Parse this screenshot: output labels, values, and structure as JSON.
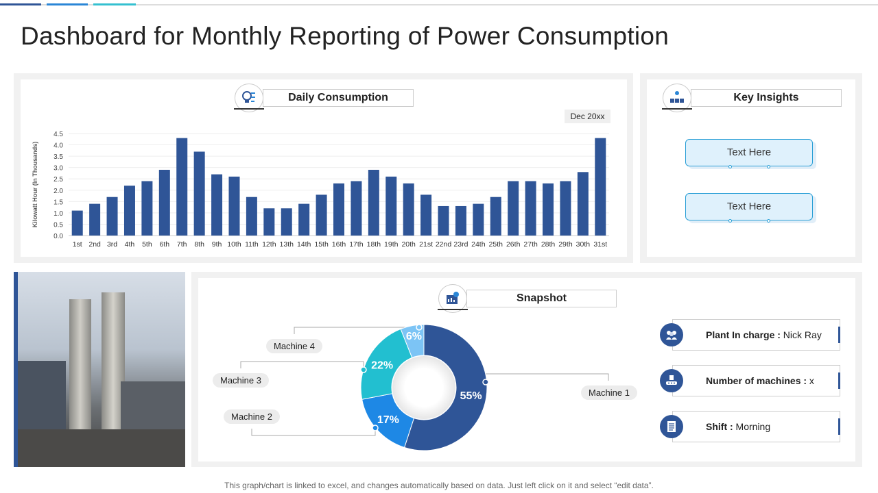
{
  "title": "Dashboard for Monthly Reporting of Power Consumption",
  "daily": {
    "header": "Daily Consumption",
    "period": "Dec 20xx"
  },
  "chart_data": {
    "type": "bar",
    "title": "Daily Consumption",
    "ylabel": "Kilowatt Hour (In Thousands)",
    "xlabel": "",
    "ylim": [
      0,
      4.5
    ],
    "yticks": [
      "0.0",
      "0.5",
      "1.0",
      "1.5",
      "2.0",
      "2.5",
      "3.0",
      "3.5",
      "4.0",
      "4.5"
    ],
    "grid": true,
    "color": "#2f5597",
    "categories": [
      "1st",
      "2nd",
      "3rd",
      "4th",
      "5th",
      "6th",
      "7th",
      "8th",
      "9th",
      "10th",
      "11th",
      "12th",
      "13th",
      "14th",
      "15th",
      "16th",
      "17th",
      "18th",
      "19th",
      "20th",
      "21st",
      "22nd",
      "23rd",
      "24th",
      "25th",
      "26th",
      "27th",
      "28th",
      "29th",
      "30th",
      "31st"
    ],
    "values": [
      1.1,
      1.4,
      1.7,
      2.2,
      2.4,
      2.9,
      4.3,
      3.7,
      2.7,
      2.6,
      1.7,
      1.2,
      1.2,
      1.4,
      1.8,
      2.3,
      2.4,
      2.9,
      2.6,
      2.3,
      1.8,
      1.3,
      1.3,
      1.4,
      1.7,
      2.4,
      2.4,
      2.3,
      2.4,
      2.8,
      4.3
    ]
  },
  "insights": {
    "header": "Key Insights",
    "items": [
      "Text Here",
      "Text Here"
    ]
  },
  "snapshot": {
    "header": "Snapshot",
    "donut": {
      "type": "pie",
      "slices": [
        {
          "name": "Machine 1",
          "value": 55,
          "label": "55%",
          "color": "#2f5597"
        },
        {
          "name": "Machine 2",
          "value": 17,
          "label": "17%",
          "color": "#1e88e5"
        },
        {
          "name": "Machine 3",
          "value": 22,
          "label": "22%",
          "color": "#22bfd0"
        },
        {
          "name": "Machine 4",
          "value": 6,
          "label": "6%",
          "color": "#7cc4f5"
        }
      ]
    },
    "info": [
      {
        "label": "Plant In charge :",
        "value": " Nick Ray",
        "icon": "people-icon"
      },
      {
        "label": "Number of machines :",
        "value": " x",
        "icon": "machine-icon"
      },
      {
        "label": "Shift :",
        "value": " Morning",
        "icon": "checklist-icon"
      }
    ]
  },
  "footer": "This graph/chart is linked to excel,  and changes automatically based on data. Just left click on it and select “edit data”."
}
